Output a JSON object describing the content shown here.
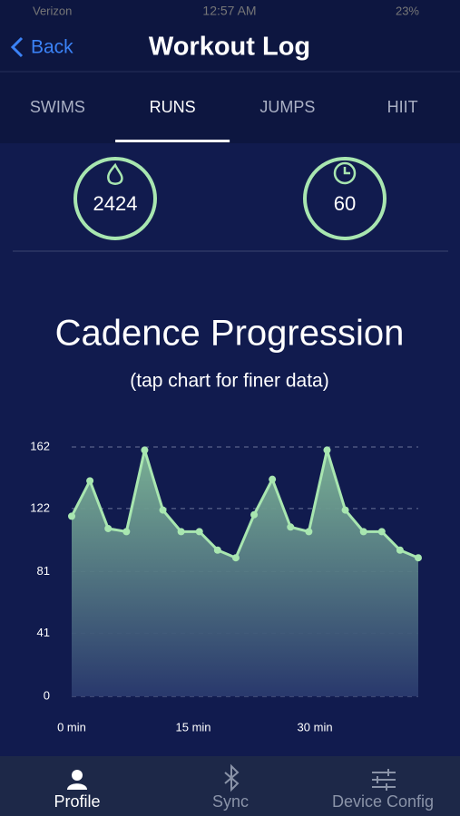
{
  "status_bar": {
    "carrier": "Verizon",
    "time": "12:57 AM",
    "battery": "23%"
  },
  "nav": {
    "back": "Back",
    "title": "Workout Log"
  },
  "tabs": [
    "SWIMS",
    "RUNS",
    "JUMPS",
    "HIIT"
  ],
  "active_tab": 1,
  "stats": [
    2424,
    60
  ],
  "chart_data": {
    "type": "line",
    "title": "Cadence Progression",
    "subtitle": "(tap chart for finer data)",
    "x": [
      0,
      2.25,
      4.5,
      6.75,
      9,
      11.25,
      13.5,
      15.75,
      18,
      20.25,
      22.5,
      24.75,
      27,
      29.25,
      31.5,
      33.75,
      36,
      38.25,
      40.5,
      42.75
    ],
    "values": [
      117,
      140,
      109,
      107,
      160,
      121,
      107,
      107,
      95,
      90,
      118,
      141,
      110,
      107,
      160,
      121,
      107,
      107,
      95,
      90
    ],
    "color": "#a8e6b0",
    "xlim": [
      0,
      42.75
    ],
    "xticks": [
      {
        "value": 0,
        "label": "0 min"
      },
      {
        "value": 15,
        "label": "15 min"
      },
      {
        "value": 30,
        "label": "30 min"
      }
    ],
    "ylim": [
      0,
      162
    ],
    "yticks": [
      0,
      41,
      81,
      122,
      162
    ],
    "grid": true
  },
  "bottom_tabs": [
    "Profile",
    "Sync",
    "Device Config"
  ],
  "active_bottom_tab": 0
}
